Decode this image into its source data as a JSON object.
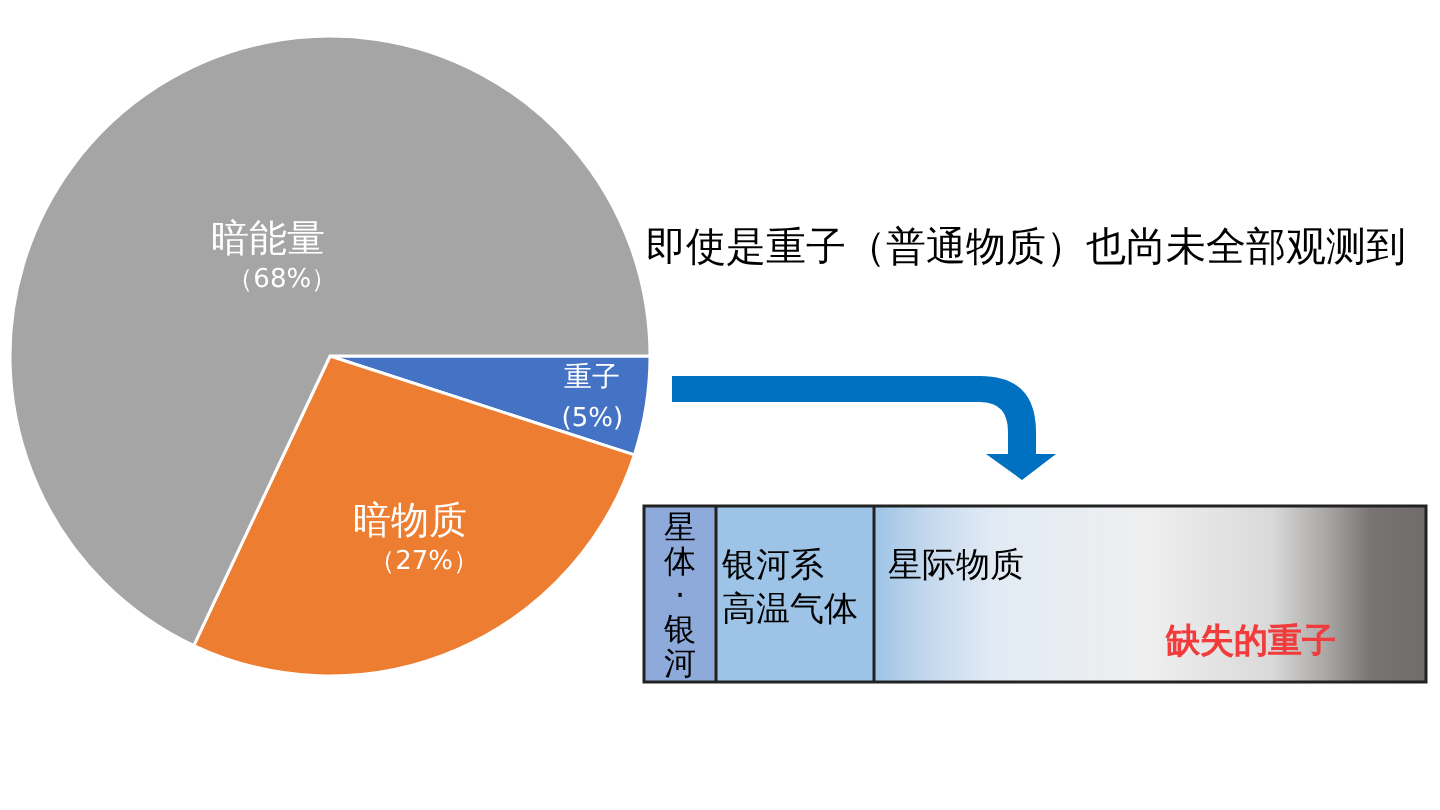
{
  "chart_data": {
    "type": "pie",
    "categories": [
      "重子",
      "暗物质",
      "暗能量"
    ],
    "values": [
      5,
      27,
      68
    ],
    "colors": [
      "#4472c4",
      "#ed7d31",
      "#a5a5a5"
    ],
    "value_labels": [
      "(5%)",
      "（27%）",
      "（68%）"
    ],
    "annotations": [
      "即使是重子（普通物质）也尚未全部观测到",
      "星体·银河",
      "银河系高温气体",
      "星际物质",
      "缺失的重子"
    ]
  }
}
